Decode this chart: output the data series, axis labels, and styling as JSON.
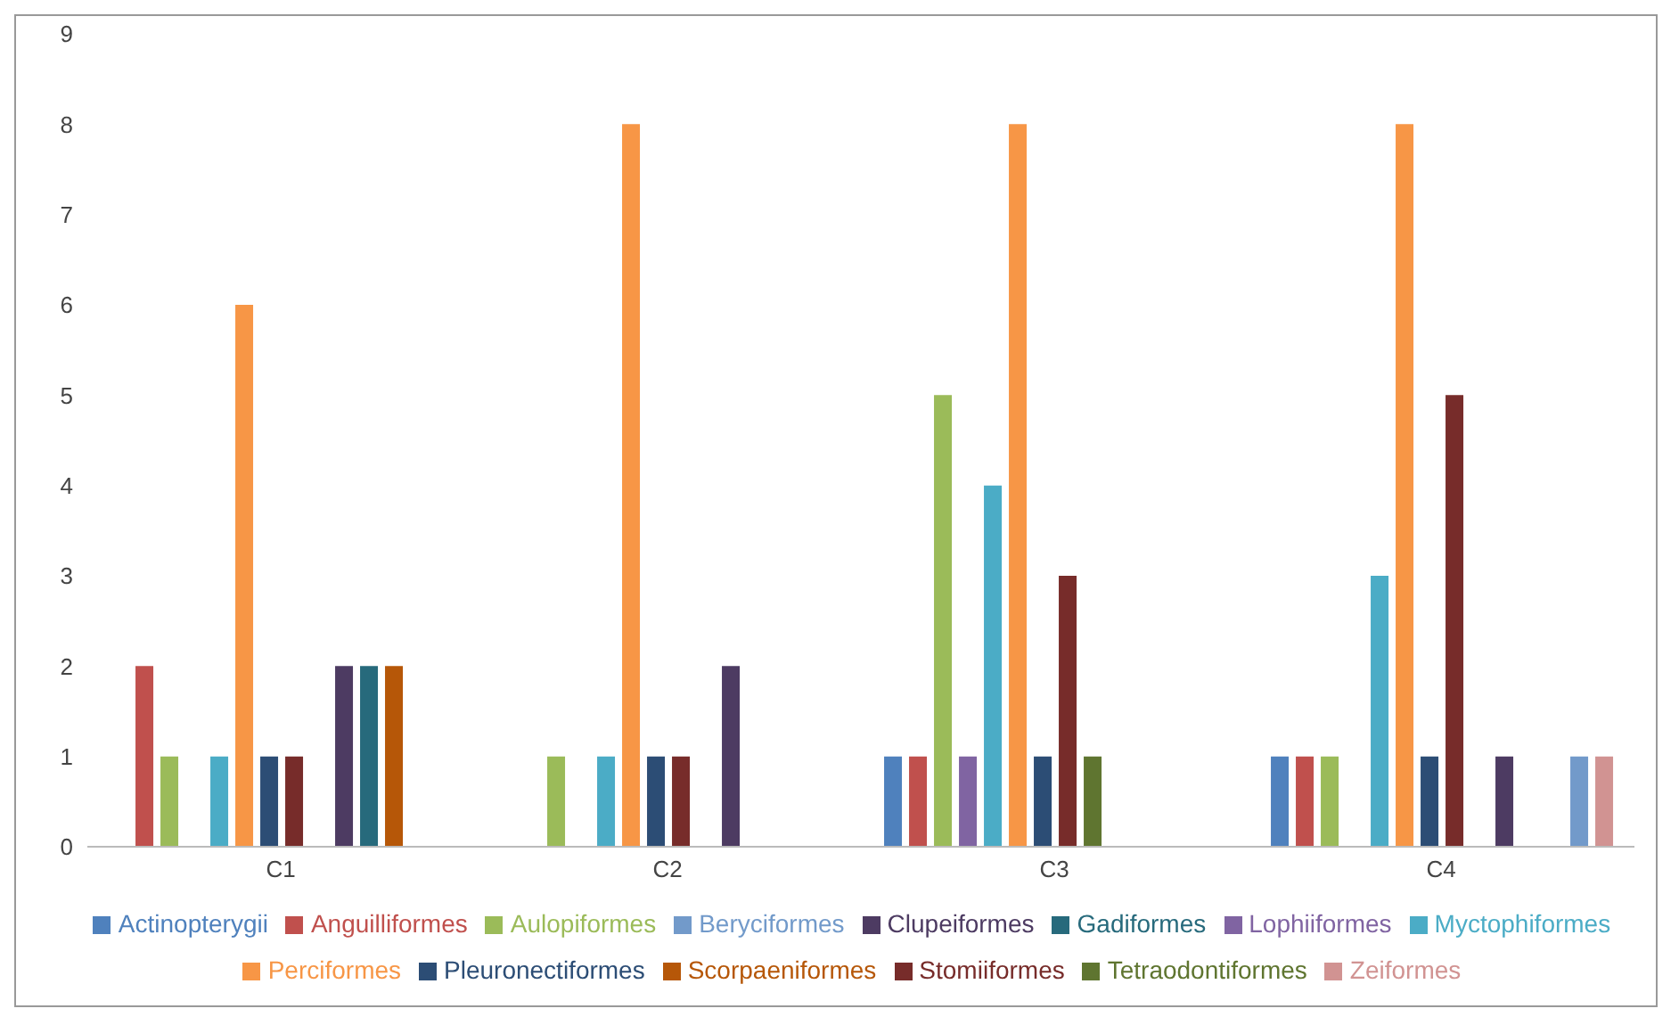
{
  "chart_data": {
    "type": "bar",
    "categories": [
      "C1",
      "C2",
      "C3",
      "C4"
    ],
    "series": [
      {
        "name": "Actinopterygii",
        "color": "#4f81bd",
        "values": [
          0,
          0,
          1,
          1
        ]
      },
      {
        "name": "Anguilliformes",
        "color": "#c0504d",
        "values": [
          2,
          0,
          1,
          1
        ]
      },
      {
        "name": "Aulopiformes",
        "color": "#9bbb59",
        "values": [
          1,
          1,
          5,
          1
        ]
      },
      {
        "name": "Lophiiformes",
        "color": "#8064a2",
        "values": [
          0,
          0,
          1,
          0
        ]
      },
      {
        "name": "Myctophiformes",
        "color": "#4bacc6",
        "values": [
          1,
          1,
          4,
          3
        ]
      },
      {
        "name": "Perciformes",
        "color": "#f79646",
        "values": [
          6,
          8,
          8,
          8
        ]
      },
      {
        "name": "Pleuronectiformes",
        "color": "#2c4d75",
        "values": [
          1,
          1,
          1,
          1
        ]
      },
      {
        "name": "Stomiiformes",
        "color": "#772c2a",
        "values": [
          1,
          1,
          3,
          5
        ]
      },
      {
        "name": "Tetraodontiformes",
        "color": "#5f7530",
        "values": [
          0,
          0,
          1,
          0
        ]
      },
      {
        "name": "Clupeiformes",
        "color": "#4d3b62",
        "values": [
          2,
          2,
          0,
          1
        ]
      },
      {
        "name": "Gadiformes",
        "color": "#276a7c",
        "values": [
          2,
          0,
          0,
          0
        ]
      },
      {
        "name": "Scorpaeniformes",
        "color": "#b65708",
        "values": [
          2,
          0,
          0,
          0
        ]
      },
      {
        "name": "Beryciformes",
        "color": "#729aca",
        "values": [
          0,
          0,
          0,
          1
        ]
      },
      {
        "name": "Zeiformes",
        "color": "#d19392",
        "values": [
          0,
          0,
          0,
          1
        ]
      }
    ],
    "ylim": [
      0,
      9
    ],
    "yticks": [
      0,
      1,
      2,
      3,
      4,
      5,
      6,
      7,
      8,
      9
    ],
    "grid": false,
    "legend": "bottom"
  }
}
